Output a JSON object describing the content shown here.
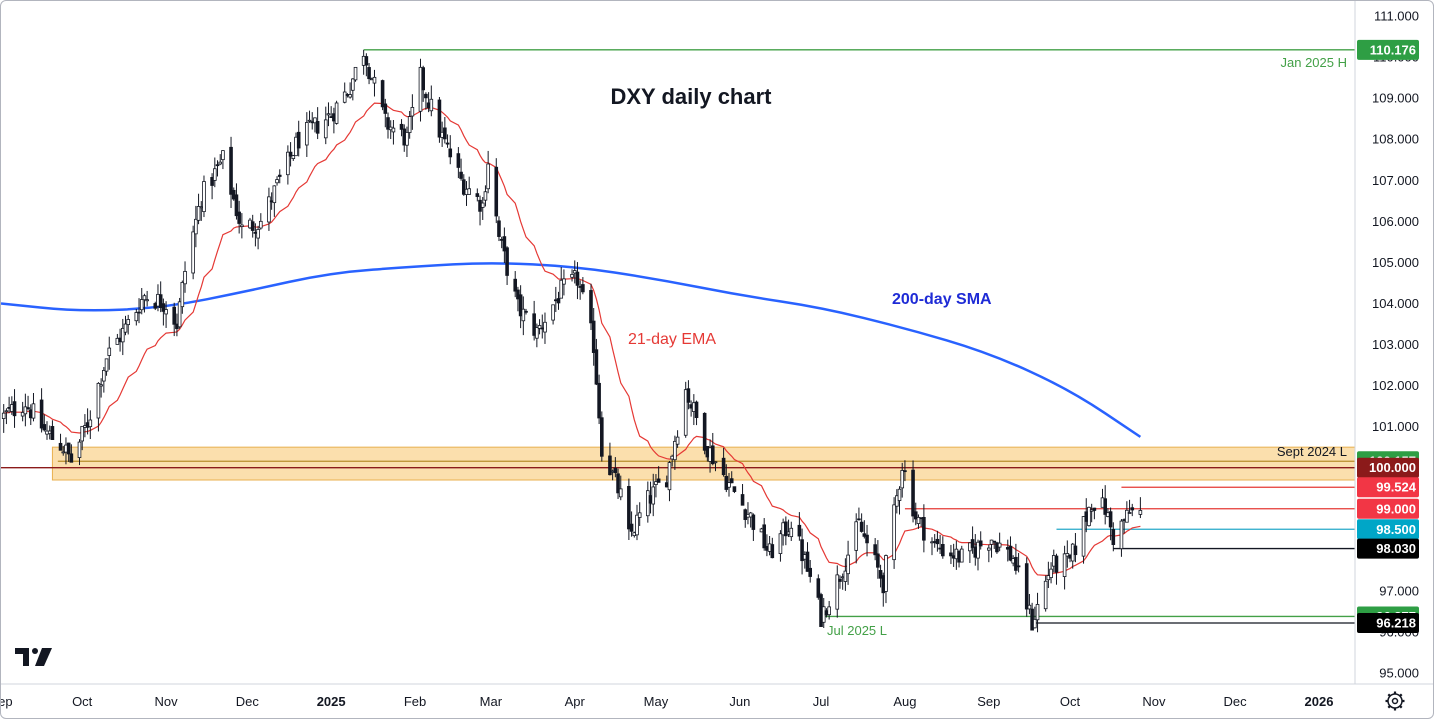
{
  "chart_data": {
    "type": "candlestick",
    "title": "DXY daily chart",
    "x_axis": {
      "labels": [
        {
          "text": "Sep",
          "date": "2024-09-01"
        },
        {
          "text": "Oct",
          "date": "2024-10-01"
        },
        {
          "text": "Nov",
          "date": "2024-11-01"
        },
        {
          "text": "Dec",
          "date": "2024-12-01"
        },
        {
          "text": "2025",
          "date": "2025-01-01",
          "bold": true
        },
        {
          "text": "Feb",
          "date": "2025-02-01"
        },
        {
          "text": "Mar",
          "date": "2025-03-01"
        },
        {
          "text": "Apr",
          "date": "2025-04-01"
        },
        {
          "text": "May",
          "date": "2025-05-01"
        },
        {
          "text": "Jun",
          "date": "2025-06-01"
        },
        {
          "text": "Jul",
          "date": "2025-07-01"
        },
        {
          "text": "Aug",
          "date": "2025-08-01"
        },
        {
          "text": "Sep",
          "date": "2025-09-01"
        },
        {
          "text": "Oct",
          "date": "2025-10-01"
        },
        {
          "text": "Nov",
          "date": "2025-11-01"
        },
        {
          "text": "Dec",
          "date": "2025-12-01"
        },
        {
          "text": "2026",
          "date": "2026-01-01",
          "bold": true
        }
      ]
    },
    "y_axis": {
      "ylim": [
        94.8,
        111.35
      ],
      "ticks": [
        "111.000",
        "110.000",
        "109.000",
        "108.000",
        "107.000",
        "106.000",
        "105.000",
        "104.000",
        "103.000",
        "102.000",
        "101.000",
        "100.000",
        "99.000",
        "98.000",
        "97.000",
        "96.000",
        "95.000"
      ],
      "tick_values": [
        111,
        110,
        109,
        108,
        107,
        106,
        105,
        104,
        103,
        102,
        101,
        100,
        99,
        98,
        97,
        96,
        95
      ]
    },
    "price_path": [
      [
        "2024-09-01",
        101.2
      ],
      [
        "2024-09-10",
        101.6
      ],
      [
        "2024-09-17",
        100.9
      ],
      [
        "2024-09-24",
        100.5
      ],
      [
        "2024-09-27",
        100.16
      ],
      [
        "2024-10-03",
        101.1
      ],
      [
        "2024-10-10",
        102.7
      ],
      [
        "2024-10-17",
        103.4
      ],
      [
        "2024-10-24",
        104.2
      ],
      [
        "2024-11-01",
        104.0
      ],
      [
        "2024-11-05",
        103.5
      ],
      [
        "2024-11-08",
        104.8
      ],
      [
        "2024-11-14",
        106.6
      ],
      [
        "2024-11-22",
        107.5
      ],
      [
        "2024-11-29",
        105.8
      ],
      [
        "2024-12-06",
        106.0
      ],
      [
        "2024-12-13",
        107.0
      ],
      [
        "2024-12-20",
        108.0
      ],
      [
        "2025-01-01",
        108.6
      ],
      [
        "2025-01-08",
        109.3
      ],
      [
        "2025-01-13",
        110.18
      ],
      [
        "2025-01-21",
        108.4
      ],
      [
        "2025-01-29",
        108.0
      ],
      [
        "2025-02-03",
        109.5
      ],
      [
        "2025-02-10",
        108.2
      ],
      [
        "2025-02-18",
        107.0
      ],
      [
        "2025-02-26",
        106.4
      ],
      [
        "2025-02-28",
        107.5
      ],
      [
        "2025-03-04",
        105.6
      ],
      [
        "2025-03-11",
        103.9
      ],
      [
        "2025-03-18",
        103.3
      ],
      [
        "2025-03-27",
        104.3
      ],
      [
        "2025-04-02",
        104.6
      ],
      [
        "2025-04-08",
        103.0
      ],
      [
        "2025-04-11",
        100.5
      ],
      [
        "2025-04-18",
        99.3
      ],
      [
        "2025-04-21",
        98.3
      ],
      [
        "2025-04-28",
        99.2
      ],
      [
        "2025-05-05",
        99.8
      ],
      [
        "2025-05-12",
        101.9
      ],
      [
        "2025-05-20",
        100.5
      ],
      [
        "2025-05-28",
        99.6
      ],
      [
        "2025-06-05",
        98.8
      ],
      [
        "2025-06-12",
        97.9
      ],
      [
        "2025-06-20",
        98.7
      ],
      [
        "2025-06-27",
        97.3
      ],
      [
        "2025-07-01",
        96.38
      ],
      [
        "2025-07-08",
        97.4
      ],
      [
        "2025-07-15",
        98.6
      ],
      [
        "2025-07-24",
        97.2
      ],
      [
        "2025-07-31",
        100.1
      ],
      [
        "2025-08-05",
        98.8
      ],
      [
        "2025-08-12",
        98.1
      ],
      [
        "2025-08-22",
        97.8
      ],
      [
        "2025-09-02",
        98.3
      ],
      [
        "2025-09-10",
        97.8
      ],
      [
        "2025-09-17",
        96.22
      ],
      [
        "2025-09-24",
        97.6
      ],
      [
        "2025-10-01",
        97.7
      ],
      [
        "2025-10-09",
        99.2
      ],
      [
        "2025-10-14",
        99.0
      ],
      [
        "2025-10-17",
        98.3
      ],
      [
        "2025-10-23",
        98.9
      ],
      [
        "2025-10-27",
        98.9
      ]
    ],
    "series": [
      {
        "name": "21-day EMA",
        "color": "#e53935"
      },
      {
        "name": "200-day SMA",
        "color": "#2962ff",
        "points": [
          [
            "2024-09-01",
            104.0
          ],
          [
            "2024-09-30",
            103.8
          ],
          [
            "2024-11-01",
            103.9
          ],
          [
            "2024-12-01",
            104.3
          ],
          [
            "2025-01-01",
            104.75
          ],
          [
            "2025-02-01",
            104.9
          ],
          [
            "2025-03-01",
            105.0
          ],
          [
            "2025-04-01",
            104.9
          ],
          [
            "2025-05-01",
            104.6
          ],
          [
            "2025-06-01",
            104.2
          ],
          [
            "2025-07-01",
            103.9
          ],
          [
            "2025-08-01",
            103.4
          ],
          [
            "2025-09-01",
            102.8
          ],
          [
            "2025-10-01",
            101.9
          ],
          [
            "2025-10-27",
            100.75
          ]
        ]
      }
    ],
    "annotations": [
      {
        "text": "DXY daily chart",
        "color": "#131722"
      },
      {
        "text": "21-day EMA",
        "color": "#e53935"
      },
      {
        "text": "200-day SMA",
        "color": "#1e2bd6"
      },
      {
        "text": "Jan 2025 H",
        "color": "#43a047"
      },
      {
        "text": "Sept 2024 L",
        "color": "#131722"
      },
      {
        "text": "Jul 2025 L",
        "color": "#43a047"
      }
    ],
    "levels": [
      {
        "value": 110.176,
        "label": "110.176",
        "tag_color": "#2e9e44",
        "line_color": "#43a047",
        "from": "2025-01-13"
      },
      {
        "value": 100.157,
        "label": "100.157",
        "tag_color": "#2e9e44",
        "line_color": "#b88d2a",
        "from": "2024-09-22"
      },
      {
        "value": 100.0,
        "label": "100.000",
        "tag_color": "#8b1a1a",
        "line_color": "#8b1a1a",
        "from": "2024-09-01"
      },
      {
        "value": 99.524,
        "label": "99.524",
        "tag_color": "#f23645",
        "line_color": "#e53935",
        "from": "2025-10-20"
      },
      {
        "value": 99.0,
        "label": "99.000",
        "tag_color": "#f23645",
        "line_color": "#e53935",
        "from": "2025-08-01"
      },
      {
        "value": 98.5,
        "label": "98.500",
        "tag_color": "#00a6c7",
        "line_color": "#26a9c9",
        "from": "2025-09-26"
      },
      {
        "value": 98.03,
        "label": "98.030",
        "tag_color": "#000000",
        "line_color": "#131722",
        "from": "2025-10-17"
      },
      {
        "value": 96.377,
        "label": "96.377",
        "tag_color": "#2e9e44",
        "line_color": "#43a047",
        "from": "2025-07-01"
      },
      {
        "value": 96.218,
        "label": "96.218",
        "tag_color": "#000000",
        "line_color": "#131722",
        "from": "2025-09-17"
      }
    ],
    "zone": {
      "from_value": 99.7,
      "to_value": 100.5,
      "from": "2024-09-20",
      "color": "#f7c46a"
    },
    "grid": false,
    "logo": "tradingview-logo",
    "settings_icon": "gear-icon"
  }
}
